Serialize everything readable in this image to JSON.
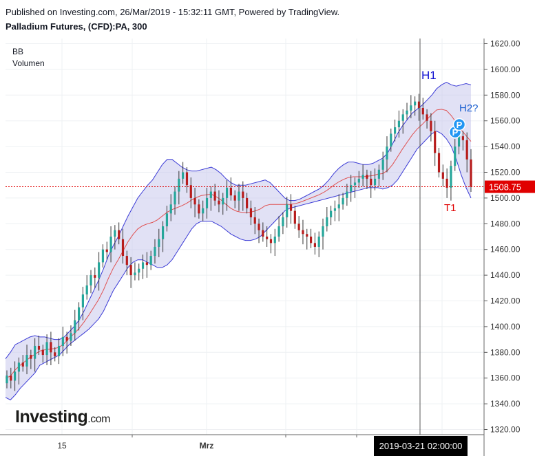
{
  "header": {
    "published": "Published on Investing.com, 26/Mar/2019 - 15:32:11 GMT, Powered by TradingView.",
    "symbol": "Palladium Futures, (CFD):PA, 300"
  },
  "indicators": [
    "BB",
    "Volumen"
  ],
  "logo": {
    "word": "Investing",
    "suffix": ".com"
  },
  "colors": {
    "up": "#26a69a",
    "down": "#b71c1c",
    "bb_band": "#3b3bd6",
    "bb_fill": "#c9c9ec",
    "basis": "#e05050",
    "price_line": "#e00000",
    "annotation_blue": "#1010d0",
    "annotation_red": "#e00000",
    "marker": "#2196f3"
  },
  "chart_data": {
    "type": "candlestick",
    "y_axis": {
      "ticks": [
        "1620.00",
        "1600.00",
        "1580.00",
        "1560.00",
        "1540.00",
        "1520.00",
        "1500.00",
        "1480.00",
        "1460.00",
        "1440.00",
        "1420.00",
        "1400.00",
        "1380.00",
        "1360.00",
        "1340.00",
        "1320.00"
      ],
      "ylim": [
        1316,
        1624
      ]
    },
    "x_axis": {
      "labels": [
        "15",
        "Mrz"
      ],
      "crosshair_label": "2019-03-21 02:00:00"
    },
    "last_price": "1508.75",
    "annotations": [
      {
        "text": "H1",
        "color": "annotation_blue"
      },
      {
        "text": "H2?",
        "color": "annotation_blue"
      },
      {
        "text": "T1",
        "color": "annotation_red"
      }
    ],
    "markers": [
      "P",
      "P"
    ],
    "close": [
      1362,
      1358,
      1365,
      1372,
      1369,
      1378,
      1375,
      1385,
      1382,
      1378,
      1388,
      1380,
      1377,
      1385,
      1392,
      1389,
      1395,
      1405,
      1415,
      1425,
      1432,
      1440,
      1438,
      1450,
      1460,
      1458,
      1470,
      1475,
      1468,
      1455,
      1448,
      1440,
      1442,
      1445,
      1450,
      1448,
      1455,
      1462,
      1468,
      1478,
      1488,
      1495,
      1505,
      1515,
      1520,
      1510,
      1500,
      1495,
      1488,
      1492,
      1500,
      1505,
      1498,
      1495,
      1500,
      1508,
      1502,
      1498,
      1505,
      1500,
      1492,
      1485,
      1480,
      1475,
      1470,
      1468,
      1465,
      1470,
      1478,
      1485,
      1495,
      1490,
      1480,
      1475,
      1472,
      1470,
      1465,
      1462,
      1470,
      1478,
      1485,
      1490,
      1492,
      1495,
      1500,
      1505,
      1510,
      1512,
      1515,
      1518,
      1515,
      1510,
      1515,
      1522,
      1530,
      1540,
      1550,
      1555,
      1560,
      1565,
      1568,
      1572,
      1575,
      1570,
      1565,
      1560,
      1552,
      1535,
      1520,
      1515,
      1508,
      1525,
      1540,
      1548,
      1545,
      1530,
      1508.75
    ],
    "bb_upper": [
      1375,
      1380,
      1386,
      1388,
      1390,
      1392,
      1393,
      1392,
      1392,
      1391,
      1390,
      1390,
      1392,
      1396,
      1400,
      1405,
      1412,
      1420,
      1428,
      1436,
      1445,
      1455,
      1463,
      1470,
      1478,
      1486,
      1493,
      1500,
      1505,
      1510,
      1514,
      1520,
      1526,
      1530,
      1530,
      1527,
      1524,
      1522,
      1521,
      1521,
      1522,
      1523,
      1524,
      1522,
      1519,
      1515,
      1512,
      1510,
      1510,
      1510,
      1511,
      1512,
      1513,
      1514,
      1512,
      1508,
      1504,
      1500,
      1498,
      1498,
      1499,
      1501,
      1503,
      1505,
      1507,
      1510,
      1514,
      1519,
      1523,
      1526,
      1528,
      1528,
      1527,
      1526,
      1526,
      1527,
      1529,
      1531,
      1535,
      1542,
      1550,
      1556,
      1561,
      1566,
      1569,
      1572,
      1576,
      1580,
      1585,
      1588,
      1590,
      1588,
      1587,
      1588,
      1589,
      1588
    ],
    "bb_lower": [
      1345,
      1343,
      1347,
      1352,
      1356,
      1360,
      1364,
      1370,
      1372,
      1374,
      1376,
      1378,
      1382,
      1386,
      1389,
      1392,
      1395,
      1398,
      1402,
      1406,
      1412,
      1420,
      1428,
      1434,
      1440,
      1446,
      1450,
      1452,
      1452,
      1450,
      1448,
      1446,
      1446,
      1448,
      1452,
      1458,
      1464,
      1470,
      1476,
      1480,
      1482,
      1482,
      1482,
      1480,
      1478,
      1475,
      1472,
      1470,
      1468,
      1467,
      1467,
      1468,
      1470,
      1474,
      1478,
      1482,
      1486,
      1490,
      1492,
      1493,
      1494,
      1495,
      1496,
      1497,
      1498,
      1499,
      1500,
      1501,
      1502,
      1503,
      1504,
      1505,
      1506,
      1507,
      1508,
      1508,
      1508,
      1507,
      1508,
      1510,
      1514,
      1520,
      1526,
      1532,
      1538,
      1542,
      1546,
      1550,
      1552,
      1550,
      1546,
      1540,
      1530,
      1518,
      1508,
      1500
    ]
  }
}
